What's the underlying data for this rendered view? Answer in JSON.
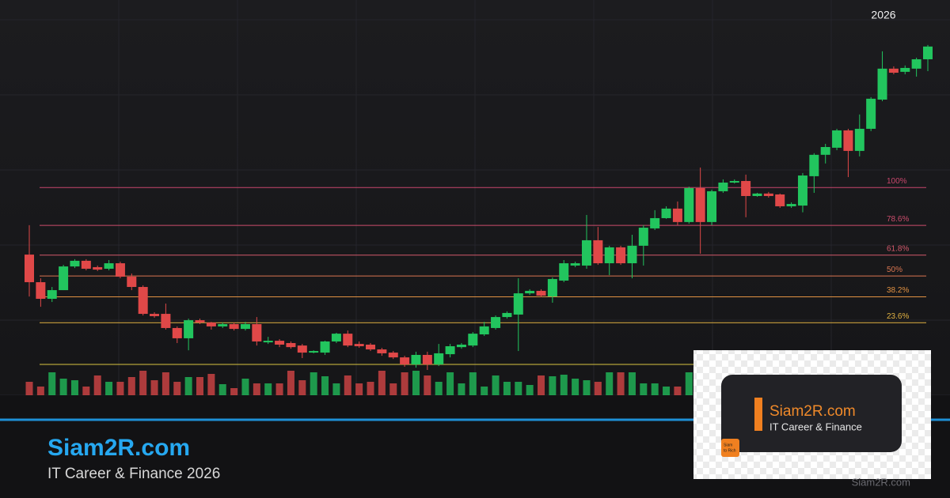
{
  "chart_data": {
    "type": "candlestick",
    "open": [
      62.1,
      46.5,
      37.1,
      42.0,
      55.4,
      58.6,
      55.0,
      54.1,
      57.2,
      49.6,
      43.8,
      28.6,
      28.6,
      20.6,
      14.8,
      25.0,
      23.7,
      21.5,
      22.8,
      20.1,
      22.8,
      12.5,
      13.4,
      12.1,
      10.7,
      6.7,
      6.7,
      13.0,
      17.4,
      11.6,
      11.2,
      8.5,
      6.7,
      4.0,
      0,
      5.4,
      0,
      5.8,
      9.8,
      10.7,
      17.0,
      20.6,
      26.8,
      28.2,
      40.2,
      41.6,
      38.4,
      47.4,
      55.9,
      55.9,
      70.2,
      57.2,
      66.2,
      57.2,
      67.1,
      76.9,
      82.7,
      88.1,
      80.5,
      99.7,
      80.5,
      97.9,
      102.8,
      103.7,
      95.2,
      96.6,
      96.1,
      89.4,
      89.8,
      106.4,
      118.5,
      122.5,
      132.3,
      120.7,
      133.2,
      149.7,
      167.2,
      165.4,
      167.2,
      172.5
    ],
    "high": [
      78.7,
      48.7,
      43.8,
      56.3,
      59.5,
      59.5,
      55.9,
      59.0,
      58.1,
      51.4,
      44.7,
      29.5,
      34.4,
      21.5,
      25.9,
      25.9,
      24.1,
      23.7,
      23.7,
      24.1,
      26.8,
      15.6,
      14.3,
      13.0,
      11.6,
      8.0,
      13.4,
      17.9,
      19.2,
      13.0,
      12.1,
      9.4,
      7.6,
      4.9,
      7.2,
      7.2,
      11.6,
      11.6,
      12.1,
      18.3,
      24.1,
      27.7,
      30.0,
      48.7,
      42.5,
      42.5,
      49.2,
      59.0,
      58.1,
      84.5,
      77.7,
      67.1,
      67.1,
      73.3,
      78.7,
      87.2,
      89.4,
      92.1,
      100.5,
      111.3,
      98.8,
      104.6,
      104.6,
      107.3,
      97.0,
      97.5,
      96.6,
      91.6,
      108.2,
      119.4,
      124.7,
      133.2,
      133.2,
      141.3,
      151.1,
      177.0,
      168.5,
      169.0,
      173.4,
      180.6
    ],
    "low": [
      38.4,
      32.6,
      35.3,
      42.0,
      54.5,
      53.2,
      52.8,
      53.2,
      48.7,
      42.0,
      27.7,
      26.4,
      19.7,
      12.1,
      8.0,
      22.8,
      19.7,
      20.6,
      19.2,
      19.2,
      10.7,
      11.6,
      9.8,
      8.9,
      3.6,
      6.3,
      5.4,
      12.1,
      9.8,
      9.4,
      7.6,
      4.9,
      3.1,
      -1.3,
      -1.8,
      -3.1,
      -0.9,
      4.0,
      8.9,
      9.8,
      16.1,
      19.7,
      25.9,
      7.6,
      39.3,
      38.0,
      34.9,
      46.5,
      55.0,
      54.1,
      56.3,
      50.5,
      56.3,
      48.7,
      55.9,
      76.0,
      82.3,
      78.7,
      79.6,
      62.6,
      78.7,
      97.0,
      102.3,
      83.2,
      94.8,
      94.3,
      88.5,
      88.5,
      86.0,
      97.0,
      113.6,
      121.1,
      105.9,
      117.6,
      131.9,
      148.8,
      164.0,
      164.0,
      162.7,
      165.8
    ],
    "close": [
      46.5,
      37.1,
      42.0,
      55.4,
      58.6,
      54.1,
      53.6,
      57.2,
      49.6,
      43.8,
      28.6,
      27.3,
      20.6,
      14.8,
      25.0,
      23.7,
      21.5,
      22.8,
      20.1,
      22.8,
      13.0,
      13.4,
      11.2,
      9.8,
      6.7,
      7.6,
      13.0,
      17.4,
      10.7,
      10.3,
      8.5,
      6.3,
      4.0,
      0,
      5.4,
      0,
      6.3,
      10.3,
      11.2,
      17.4,
      21.5,
      26.8,
      29.1,
      40.2,
      41.6,
      38.9,
      48.3,
      57.2,
      57.2,
      70.2,
      57.2,
      66.2,
      57.2,
      67.1,
      77.3,
      82.7,
      88.1,
      80.5,
      99.7,
      80.5,
      97.9,
      102.8,
      103.7,
      95.2,
      96.6,
      95.2,
      89.4,
      90.7,
      106.8,
      118.5,
      122.9,
      132.3,
      120.7,
      133.2,
      150.2,
      167.2,
      164.9,
      167.6,
      172.5,
      179.7
    ],
    "volume": [
      17,
      11,
      29,
      21,
      19,
      11,
      25,
      17,
      17,
      23,
      31,
      19,
      29,
      17,
      23,
      23,
      27,
      14,
      9,
      21,
      15,
      15,
      15,
      31,
      19,
      29,
      24,
      15,
      25,
      15,
      17,
      31,
      15,
      29,
      31,
      25,
      17,
      29,
      15,
      29,
      11,
      25,
      17,
      17,
      13,
      25,
      24,
      26,
      21,
      19,
      17,
      29,
      29,
      29,
      15,
      15,
      11,
      11,
      29,
      null,
      null,
      null,
      null,
      null,
      null,
      null,
      null,
      null,
      null,
      null,
      null,
      null,
      null,
      null,
      null,
      null,
      null,
      null,
      null,
      null
    ],
    "up_color": "#22c55e",
    "down_color": "#e04848",
    "ylim": [
      -17.4,
      206
    ],
    "levels": [
      {
        "value": 100,
        "label": "100%"
      },
      {
        "value": 78.6,
        "label": "78.6%"
      },
      {
        "value": 61.8,
        "label": "61.8%"
      },
      {
        "value": 50,
        "label": "50%"
      },
      {
        "value": 38.2,
        "label": "38.2%"
      },
      {
        "value": 23.6,
        "label": "23.6%"
      },
      {
        "value": 0,
        "label": null
      }
    ],
    "level_colors": [
      "#c8466c",
      "#cc4c6c",
      "#d2586a",
      "#da7650",
      "#e29242",
      "#e2b242",
      "#d8c440"
    ]
  },
  "year_label": "2026",
  "brand": {
    "title": "Siam2R.com",
    "subtitle": "IT Career & Finance 2026"
  },
  "badge": {
    "title": "Siam2R.com",
    "subtitle": "IT Career & Finance",
    "logo_top": "Siam",
    "logo_bottom": "to Rich"
  },
  "watermark": "Siam2R.com"
}
